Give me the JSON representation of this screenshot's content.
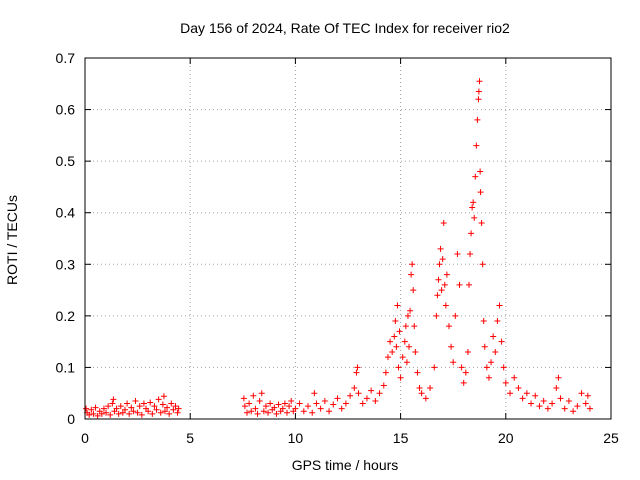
{
  "chart_data": {
    "type": "scatter",
    "title": "Day 156 of 2024, Rate Of TEC Index for receiver rio2",
    "xlabel": "GPS time / hours",
    "ylabel": "ROTI / TECUs",
    "xlim": [
      0,
      25
    ],
    "ylim": [
      0,
      0.7
    ],
    "xticks": [
      0,
      5,
      10,
      15,
      20,
      25
    ],
    "yticks": [
      0,
      0.1,
      0.2,
      0.3,
      0.4,
      0.5,
      0.6,
      0.7
    ],
    "xtick_labels": [
      "0",
      "5",
      "10",
      "15",
      "20",
      "25"
    ],
    "ytick_labels": [
      "0",
      "0.1",
      "0.2",
      "0.3",
      "0.4",
      "0.5",
      "0.6",
      "0.7"
    ],
    "grid": true,
    "marker": "+",
    "color": "#ff0000",
    "series": [
      {
        "name": "rio2",
        "points": [
          [
            0.05,
            0.02
          ],
          [
            0.1,
            0.012
          ],
          [
            0.2,
            0.008
          ],
          [
            0.3,
            0.018
          ],
          [
            0.4,
            0.01
          ],
          [
            0.5,
            0.022
          ],
          [
            0.6,
            0.006
          ],
          [
            0.7,
            0.015
          ],
          [
            0.8,
            0.01
          ],
          [
            0.9,
            0.02
          ],
          [
            1.0,
            0.012
          ],
          [
            1.1,
            0.025
          ],
          [
            1.2,
            0.008
          ],
          [
            1.3,
            0.03
          ],
          [
            1.35,
            0.038
          ],
          [
            1.4,
            0.015
          ],
          [
            1.5,
            0.02
          ],
          [
            1.6,
            0.01
          ],
          [
            1.7,
            0.025
          ],
          [
            1.8,
            0.012
          ],
          [
            1.9,
            0.018
          ],
          [
            2.0,
            0.03
          ],
          [
            2.1,
            0.01
          ],
          [
            2.2,
            0.022
          ],
          [
            2.3,
            0.015
          ],
          [
            2.4,
            0.035
          ],
          [
            2.5,
            0.012
          ],
          [
            2.6,
            0.025
          ],
          [
            2.7,
            0.008
          ],
          [
            2.8,
            0.03
          ],
          [
            2.9,
            0.02
          ],
          [
            3.0,
            0.015
          ],
          [
            3.1,
            0.032
          ],
          [
            3.2,
            0.01
          ],
          [
            3.3,
            0.025
          ],
          [
            3.4,
            0.018
          ],
          [
            3.5,
            0.038
          ],
          [
            3.6,
            0.012
          ],
          [
            3.7,
            0.028
          ],
          [
            3.75,
            0.044
          ],
          [
            3.8,
            0.015
          ],
          [
            3.9,
            0.022
          ],
          [
            4.0,
            0.01
          ],
          [
            4.1,
            0.03
          ],
          [
            4.2,
            0.018
          ],
          [
            4.3,
            0.025
          ],
          [
            4.4,
            0.012
          ],
          [
            4.45,
            0.02
          ],
          [
            7.55,
            0.04
          ],
          [
            7.6,
            0.025
          ],
          [
            7.7,
            0.012
          ],
          [
            7.8,
            0.03
          ],
          [
            7.9,
            0.015
          ],
          [
            8.0,
            0.045
          ],
          [
            8.1,
            0.02
          ],
          [
            8.2,
            0.01
          ],
          [
            8.3,
            0.035
          ],
          [
            8.4,
            0.05
          ],
          [
            8.5,
            0.015
          ],
          [
            8.6,
            0.025
          ],
          [
            8.7,
            0.012
          ],
          [
            8.8,
            0.03
          ],
          [
            8.9,
            0.018
          ],
          [
            9.0,
            0.022
          ],
          [
            9.1,
            0.01
          ],
          [
            9.2,
            0.028
          ],
          [
            9.3,
            0.015
          ],
          [
            9.4,
            0.02
          ],
          [
            9.5,
            0.03
          ],
          [
            9.6,
            0.012
          ],
          [
            9.7,
            0.025
          ],
          [
            9.8,
            0.035
          ],
          [
            9.9,
            0.015
          ],
          [
            10.0,
            0.02
          ],
          [
            10.2,
            0.03
          ],
          [
            10.4,
            0.015
          ],
          [
            10.6,
            0.025
          ],
          [
            10.8,
            0.012
          ],
          [
            10.9,
            0.05
          ],
          [
            11.0,
            0.03
          ],
          [
            11.2,
            0.02
          ],
          [
            11.4,
            0.035
          ],
          [
            11.6,
            0.015
          ],
          [
            11.8,
            0.028
          ],
          [
            12.0,
            0.04
          ],
          [
            12.2,
            0.02
          ],
          [
            12.4,
            0.03
          ],
          [
            12.6,
            0.045
          ],
          [
            12.8,
            0.06
          ],
          [
            12.9,
            0.09
          ],
          [
            12.95,
            0.1
          ],
          [
            13.0,
            0.05
          ],
          [
            13.2,
            0.03
          ],
          [
            13.4,
            0.04
          ],
          [
            13.6,
            0.055
          ],
          [
            13.8,
            0.035
          ],
          [
            14.0,
            0.05
          ],
          [
            14.2,
            0.065
          ],
          [
            14.3,
            0.09
          ],
          [
            14.4,
            0.12
          ],
          [
            14.5,
            0.15
          ],
          [
            14.6,
            0.13
          ],
          [
            14.7,
            0.16
          ],
          [
            14.75,
            0.19
          ],
          [
            14.8,
            0.14
          ],
          [
            14.85,
            0.22
          ],
          [
            14.9,
            0.1
          ],
          [
            14.95,
            0.17
          ],
          [
            15.0,
            0.08
          ],
          [
            15.1,
            0.12
          ],
          [
            15.2,
            0.15
          ],
          [
            15.25,
            0.18
          ],
          [
            15.3,
            0.11
          ],
          [
            15.35,
            0.2
          ],
          [
            15.4,
            0.14
          ],
          [
            15.45,
            0.21
          ],
          [
            15.5,
            0.28
          ],
          [
            15.55,
            0.3
          ],
          [
            15.6,
            0.25
          ],
          [
            15.65,
            0.18
          ],
          [
            15.7,
            0.13
          ],
          [
            15.8,
            0.09
          ],
          [
            15.9,
            0.06
          ],
          [
            16.0,
            0.05
          ],
          [
            16.2,
            0.04
          ],
          [
            16.4,
            0.06
          ],
          [
            16.6,
            0.1
          ],
          [
            16.7,
            0.2
          ],
          [
            16.75,
            0.24
          ],
          [
            16.8,
            0.27
          ],
          [
            16.85,
            0.3
          ],
          [
            16.9,
            0.33
          ],
          [
            16.95,
            0.25
          ],
          [
            17.0,
            0.31
          ],
          [
            17.05,
            0.38
          ],
          [
            17.1,
            0.26
          ],
          [
            17.15,
            0.22
          ],
          [
            17.2,
            0.28
          ],
          [
            17.3,
            0.18
          ],
          [
            17.4,
            0.14
          ],
          [
            17.5,
            0.11
          ],
          [
            17.6,
            0.2
          ],
          [
            17.7,
            0.32
          ],
          [
            17.8,
            0.26
          ],
          [
            17.9,
            0.1
          ],
          [
            18.0,
            0.07
          ],
          [
            18.1,
            0.09
          ],
          [
            18.2,
            0.13
          ],
          [
            18.25,
            0.26
          ],
          [
            18.3,
            0.32
          ],
          [
            18.35,
            0.36
          ],
          [
            18.4,
            0.41
          ],
          [
            18.45,
            0.42
          ],
          [
            18.5,
            0.39
          ],
          [
            18.55,
            0.47
          ],
          [
            18.6,
            0.53
          ],
          [
            18.65,
            0.58
          ],
          [
            18.7,
            0.62
          ],
          [
            18.72,
            0.635
          ],
          [
            18.75,
            0.655
          ],
          [
            18.78,
            0.48
          ],
          [
            18.8,
            0.44
          ],
          [
            18.85,
            0.38
          ],
          [
            18.9,
            0.3
          ],
          [
            18.95,
            0.19
          ],
          [
            19.0,
            0.14
          ],
          [
            19.1,
            0.1
          ],
          [
            19.2,
            0.08
          ],
          [
            19.3,
            0.11
          ],
          [
            19.4,
            0.16
          ],
          [
            19.5,
            0.13
          ],
          [
            19.6,
            0.19
          ],
          [
            19.7,
            0.22
          ],
          [
            19.8,
            0.15
          ],
          [
            19.9,
            0.1
          ],
          [
            20.0,
            0.07
          ],
          [
            20.2,
            0.05
          ],
          [
            20.4,
            0.08
          ],
          [
            20.6,
            0.06
          ],
          [
            20.8,
            0.04
          ],
          [
            21.0,
            0.05
          ],
          [
            21.2,
            0.03
          ],
          [
            21.4,
            0.045
          ],
          [
            21.6,
            0.025
          ],
          [
            21.8,
            0.035
          ],
          [
            22.0,
            0.02
          ],
          [
            22.2,
            0.03
          ],
          [
            22.4,
            0.06
          ],
          [
            22.5,
            0.08
          ],
          [
            22.6,
            0.04
          ],
          [
            22.8,
            0.02
          ],
          [
            23.0,
            0.035
          ],
          [
            23.2,
            0.015
          ],
          [
            23.4,
            0.025
          ],
          [
            23.6,
            0.05
          ],
          [
            23.8,
            0.03
          ],
          [
            23.9,
            0.045
          ],
          [
            24.0,
            0.02
          ]
        ]
      }
    ]
  }
}
